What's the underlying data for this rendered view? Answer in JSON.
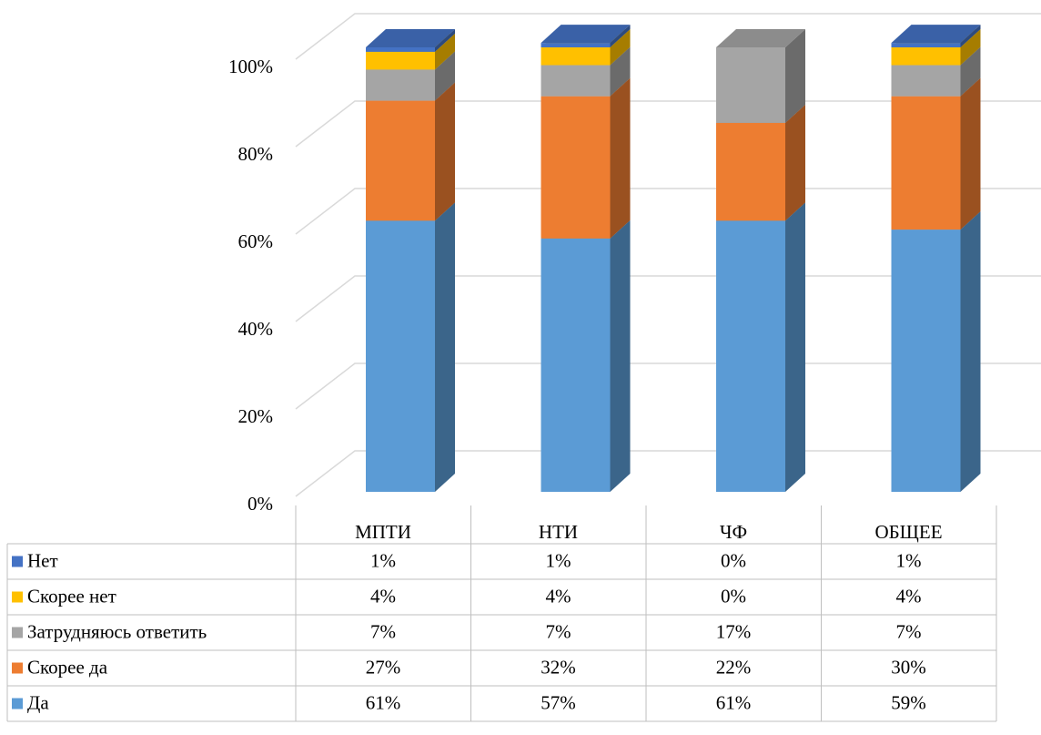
{
  "chart_data": {
    "type": "bar",
    "stacked": true,
    "three_d": true,
    "categories": [
      "МПТИ",
      "НТИ",
      "ЧФ",
      "ОБЩЕЕ"
    ],
    "series": [
      {
        "name": "Нет",
        "color": "#4472c4",
        "values": [
          1,
          1,
          0,
          1
        ],
        "value_labels": [
          "1%",
          "1%",
          "0%",
          "1%"
        ]
      },
      {
        "name": "Скорее нет",
        "color": "#ffc000",
        "values": [
          4,
          4,
          0,
          4
        ],
        "value_labels": [
          "4%",
          "4%",
          "0%",
          "4%"
        ]
      },
      {
        "name": "Затрудняюсь ответить",
        "color": "#a5a5a5",
        "values": [
          7,
          7,
          17,
          7
        ],
        "value_labels": [
          "7%",
          "7%",
          "17%",
          "7%"
        ]
      },
      {
        "name": "Скорее да",
        "color": "#ed7d31",
        "values": [
          27,
          32,
          22,
          30
        ],
        "value_labels": [
          "27%",
          "32%",
          "22%",
          "30%"
        ]
      },
      {
        "name": "Да",
        "color": "#5b9bd5",
        "values": [
          61,
          57,
          61,
          59
        ],
        "value_labels": [
          "61%",
          "57%",
          "61%",
          "59%"
        ]
      }
    ],
    "ylim": [
      0,
      100
    ],
    "yticks": [
      {
        "value": 0,
        "label": "0%"
      },
      {
        "value": 20,
        "label": "20%"
      },
      {
        "value": 40,
        "label": "40%"
      },
      {
        "value": 60,
        "label": "60%"
      },
      {
        "value": 80,
        "label": "80%"
      },
      {
        "value": 100,
        "label": "100%"
      }
    ],
    "grid": true,
    "data_table": true
  }
}
